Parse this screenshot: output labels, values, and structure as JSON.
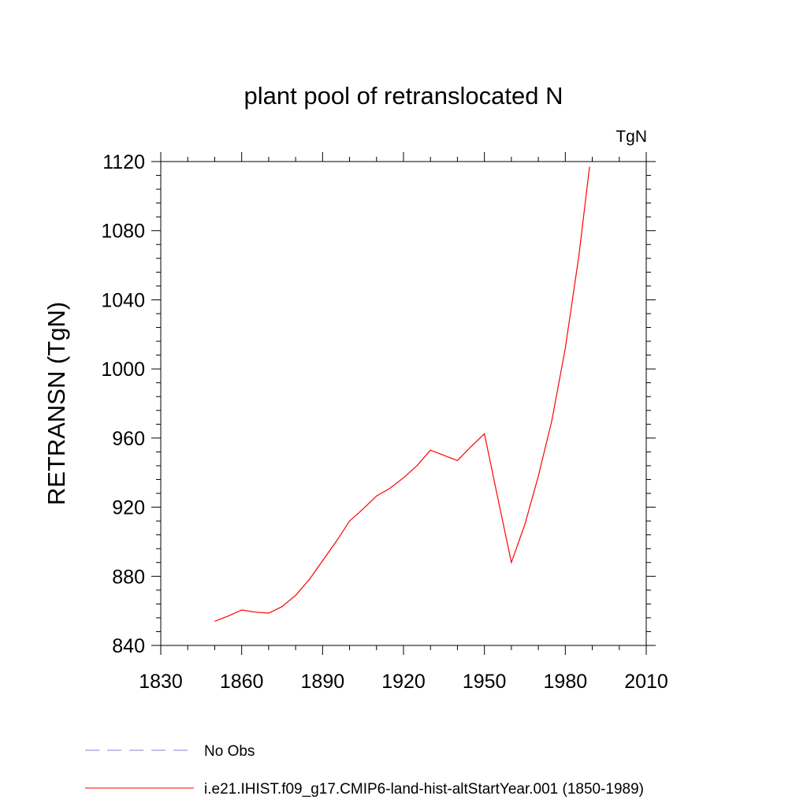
{
  "chart_data": {
    "type": "line",
    "title": "plant pool of retranslocated N",
    "units": "TgN",
    "ylabel": "RETRANSN  (TgN)",
    "xlabel": "",
    "xlim": [
      1830,
      2010
    ],
    "ylim": [
      840,
      1120
    ],
    "xticks": [
      1830,
      1860,
      1890,
      1920,
      1950,
      1980,
      2010
    ],
    "yticks": [
      840,
      880,
      920,
      960,
      1000,
      1040,
      1080,
      1120
    ],
    "x_minor_step": 10,
    "y_minor_step": 8,
    "grid": false,
    "legend_position": "bottom",
    "series": [
      {
        "name": "No Obs",
        "color": "#8a7fd0",
        "dash": "dashed",
        "x": [],
        "y": []
      },
      {
        "name": "i.e21.IHIST.f09_g17.CMIP6-land-hist-altStartYear.001 (1850-1989)",
        "color": "#ff0000",
        "dash": "solid",
        "x": [
          1850,
          1855,
          1860,
          1865,
          1870,
          1875,
          1880,
          1885,
          1890,
          1895,
          1900,
          1905,
          1910,
          1915,
          1920,
          1925,
          1930,
          1935,
          1940,
          1945,
          1950,
          1955,
          1960,
          1965,
          1970,
          1975,
          1980,
          1985,
          1989
        ],
        "y": [
          854,
          857,
          860.5,
          859.3,
          858.7,
          862.5,
          869,
          878,
          889,
          900,
          912,
          919,
          926.5,
          931,
          937,
          944,
          953,
          950,
          947,
          955,
          962.5,
          925,
          888,
          910,
          938,
          970,
          1012,
          1065,
          1117
        ]
      }
    ]
  }
}
